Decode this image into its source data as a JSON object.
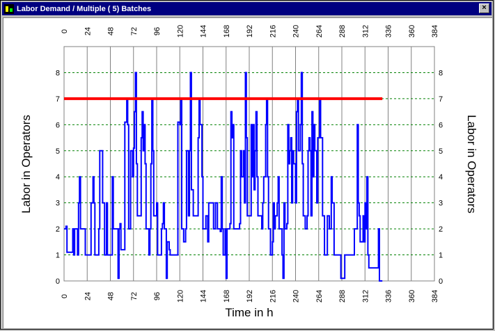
{
  "window": {
    "title": "Labor Demand / Multiple ( 5) Batches",
    "close_symbol": "×"
  },
  "chart_data": {
    "type": "line",
    "title": "",
    "xlabel": "Time in h",
    "ylabel": "Labor in Operators",
    "ylabel_right": "Labor in Operators",
    "xlim": [
      0,
      384
    ],
    "ylim": [
      0,
      9
    ],
    "x_ticks": [
      "0",
      "24",
      "48",
      "72",
      "96",
      "120",
      "144",
      "168",
      "192",
      "216",
      "240",
      "264",
      "288",
      "312",
      "336",
      "360",
      "384"
    ],
    "y_ticks": [
      "0",
      "1",
      "2",
      "3",
      "4",
      "5",
      "6",
      "7",
      "8"
    ],
    "grid": "vertical solid gray, horizontal dashed green",
    "colors": {
      "series": "#0000ff",
      "limit": "#ff0000",
      "hgrid": "#008000",
      "vgrid": "#808080"
    },
    "series": [
      {
        "name": "",
        "step": true,
        "points": [
          [
            0,
            2
          ],
          [
            2,
            2.1
          ],
          [
            3,
            1.1
          ],
          [
            9,
            2
          ],
          [
            10,
            1
          ],
          [
            11,
            2
          ],
          [
            13,
            2
          ],
          [
            14,
            1
          ],
          [
            15,
            3
          ],
          [
            16,
            4
          ],
          [
            17,
            2
          ],
          [
            21,
            2
          ],
          [
            22,
            1
          ],
          [
            27,
            1
          ],
          [
            28,
            3
          ],
          [
            30,
            4
          ],
          [
            31,
            3
          ],
          [
            32,
            1
          ],
          [
            35,
            1
          ],
          [
            36,
            2
          ],
          [
            37,
            5
          ],
          [
            40,
            3
          ],
          [
            42,
            1
          ],
          [
            44,
            3
          ],
          [
            45,
            1
          ],
          [
            49,
            1
          ],
          [
            50,
            4
          ],
          [
            51,
            2
          ],
          [
            55,
            2
          ],
          [
            56,
            0.1
          ],
          [
            57,
            2
          ],
          [
            58,
            2.2
          ],
          [
            59,
            1.2
          ],
          [
            63,
            6.1
          ],
          [
            65,
            7
          ],
          [
            66,
            6
          ],
          [
            67,
            2
          ],
          [
            69,
            5
          ],
          [
            71,
            4
          ],
          [
            72,
            5.1
          ],
          [
            73,
            6.5
          ],
          [
            74,
            8
          ],
          [
            75,
            4.5
          ],
          [
            76,
            2.5
          ],
          [
            80,
            5.5
          ],
          [
            81,
            6.5
          ],
          [
            82,
            5
          ],
          [
            83,
            6
          ],
          [
            84,
            4.5
          ],
          [
            85,
            2
          ],
          [
            88,
            1
          ],
          [
            89,
            2
          ],
          [
            90,
            4.5
          ],
          [
            91,
            7
          ],
          [
            92,
            5
          ],
          [
            93,
            2.5
          ],
          [
            95,
            2.5
          ],
          [
            96,
            3
          ],
          [
            97,
            1
          ],
          [
            101,
            2
          ],
          [
            102,
            2.2
          ],
          [
            103,
            3
          ],
          [
            104,
            2
          ],
          [
            106,
            0.1
          ],
          [
            107,
            1.5
          ],
          [
            109,
            1.2
          ],
          [
            110,
            1
          ],
          [
            118,
            6.1
          ],
          [
            119,
            6.1
          ],
          [
            120,
            6
          ],
          [
            121,
            7
          ],
          [
            122,
            2
          ],
          [
            124,
            1.5
          ],
          [
            126,
            2
          ],
          [
            127,
            5
          ],
          [
            129,
            2.5
          ],
          [
            130,
            5
          ],
          [
            131,
            8
          ],
          [
            132,
            3.5
          ],
          [
            134,
            2.5
          ],
          [
            139,
            5.5
          ],
          [
            140,
            7
          ],
          [
            141,
            6
          ],
          [
            142,
            6
          ],
          [
            143,
            4
          ],
          [
            144,
            2
          ],
          [
            147,
            2.5
          ],
          [
            149,
            1.5
          ],
          [
            150,
            3
          ],
          [
            154,
            3
          ],
          [
            155,
            2
          ],
          [
            157,
            3
          ],
          [
            159,
            2
          ],
          [
            162,
            1.9
          ],
          [
            163,
            4
          ],
          [
            164,
            2
          ],
          [
            165,
            1
          ],
          [
            167,
            2
          ],
          [
            168,
            0.1
          ],
          [
            169,
            2
          ],
          [
            171,
            2
          ],
          [
            172,
            2.2
          ],
          [
            173,
            6.5
          ],
          [
            174,
            5.5
          ],
          [
            175,
            6
          ],
          [
            176,
            2
          ],
          [
            182,
            2.2
          ],
          [
            183,
            5
          ],
          [
            184,
            4
          ],
          [
            186,
            5
          ],
          [
            187,
            3
          ],
          [
            188,
            8
          ],
          [
            189,
            5.5
          ],
          [
            190,
            2.5
          ],
          [
            194,
            6
          ],
          [
            195,
            4
          ],
          [
            196,
            6
          ],
          [
            197,
            3.5
          ],
          [
            198,
            5
          ],
          [
            199,
            6.5
          ],
          [
            200,
            4
          ],
          [
            201,
            2.5
          ],
          [
            205,
            2
          ],
          [
            206,
            3
          ],
          [
            207,
            4
          ],
          [
            209,
            6
          ],
          [
            210,
            7
          ],
          [
            211,
            4
          ],
          [
            212,
            2
          ],
          [
            214,
            1
          ],
          [
            216,
            1.5
          ],
          [
            217,
            3
          ],
          [
            218,
            2
          ],
          [
            219,
            2.5
          ],
          [
            221,
            3
          ],
          [
            222,
            4
          ],
          [
            223,
            2
          ],
          [
            226,
            1
          ],
          [
            227,
            0.1
          ],
          [
            228,
            3
          ],
          [
            229,
            2
          ],
          [
            231,
            2.2
          ],
          [
            232,
            6
          ],
          [
            233,
            4.5
          ],
          [
            234,
            5
          ],
          [
            235,
            5.5
          ],
          [
            236,
            3
          ],
          [
            237,
            5
          ],
          [
            238,
            4.5
          ],
          [
            240,
            3
          ],
          [
            241,
            6.5
          ],
          [
            242,
            7
          ],
          [
            243,
            5
          ],
          [
            245,
            6
          ],
          [
            246,
            8
          ],
          [
            247,
            4.5
          ],
          [
            248,
            2.5
          ],
          [
            250,
            2
          ],
          [
            252,
            2.5
          ],
          [
            253,
            5
          ],
          [
            254,
            5.5
          ],
          [
            255,
            5
          ],
          [
            256,
            2.5
          ],
          [
            257,
            6.5
          ],
          [
            258,
            4
          ],
          [
            259,
            6
          ],
          [
            260,
            5
          ],
          [
            262,
            3
          ],
          [
            263,
            5.5
          ],
          [
            265,
            7
          ],
          [
            266,
            5.5
          ],
          [
            268,
            2.5
          ],
          [
            270,
            1
          ],
          [
            272,
            1
          ],
          [
            273,
            2.5
          ],
          [
            275,
            2
          ],
          [
            277,
            4
          ],
          [
            278,
            3
          ],
          [
            280,
            1
          ],
          [
            285,
            1
          ],
          [
            287,
            0.1
          ],
          [
            290,
            0.1
          ],
          [
            291,
            1
          ],
          [
            300,
            1
          ],
          [
            301,
            2
          ],
          [
            303,
            2
          ],
          [
            304,
            6
          ],
          [
            305,
            3
          ],
          [
            306,
            2.5
          ],
          [
            307,
            1.5
          ],
          [
            310,
            2.5
          ],
          [
            311,
            1.5
          ],
          [
            312,
            3
          ],
          [
            313,
            2
          ],
          [
            314,
            4
          ],
          [
            315,
            1
          ],
          [
            316,
            0.5
          ],
          [
            325,
            0.5
          ],
          [
            326,
            2
          ],
          [
            327,
            0
          ],
          [
            330,
            0
          ]
        ]
      },
      {
        "name": "",
        "points": [
          [
            0,
            7
          ],
          [
            330,
            7
          ]
        ]
      }
    ]
  }
}
